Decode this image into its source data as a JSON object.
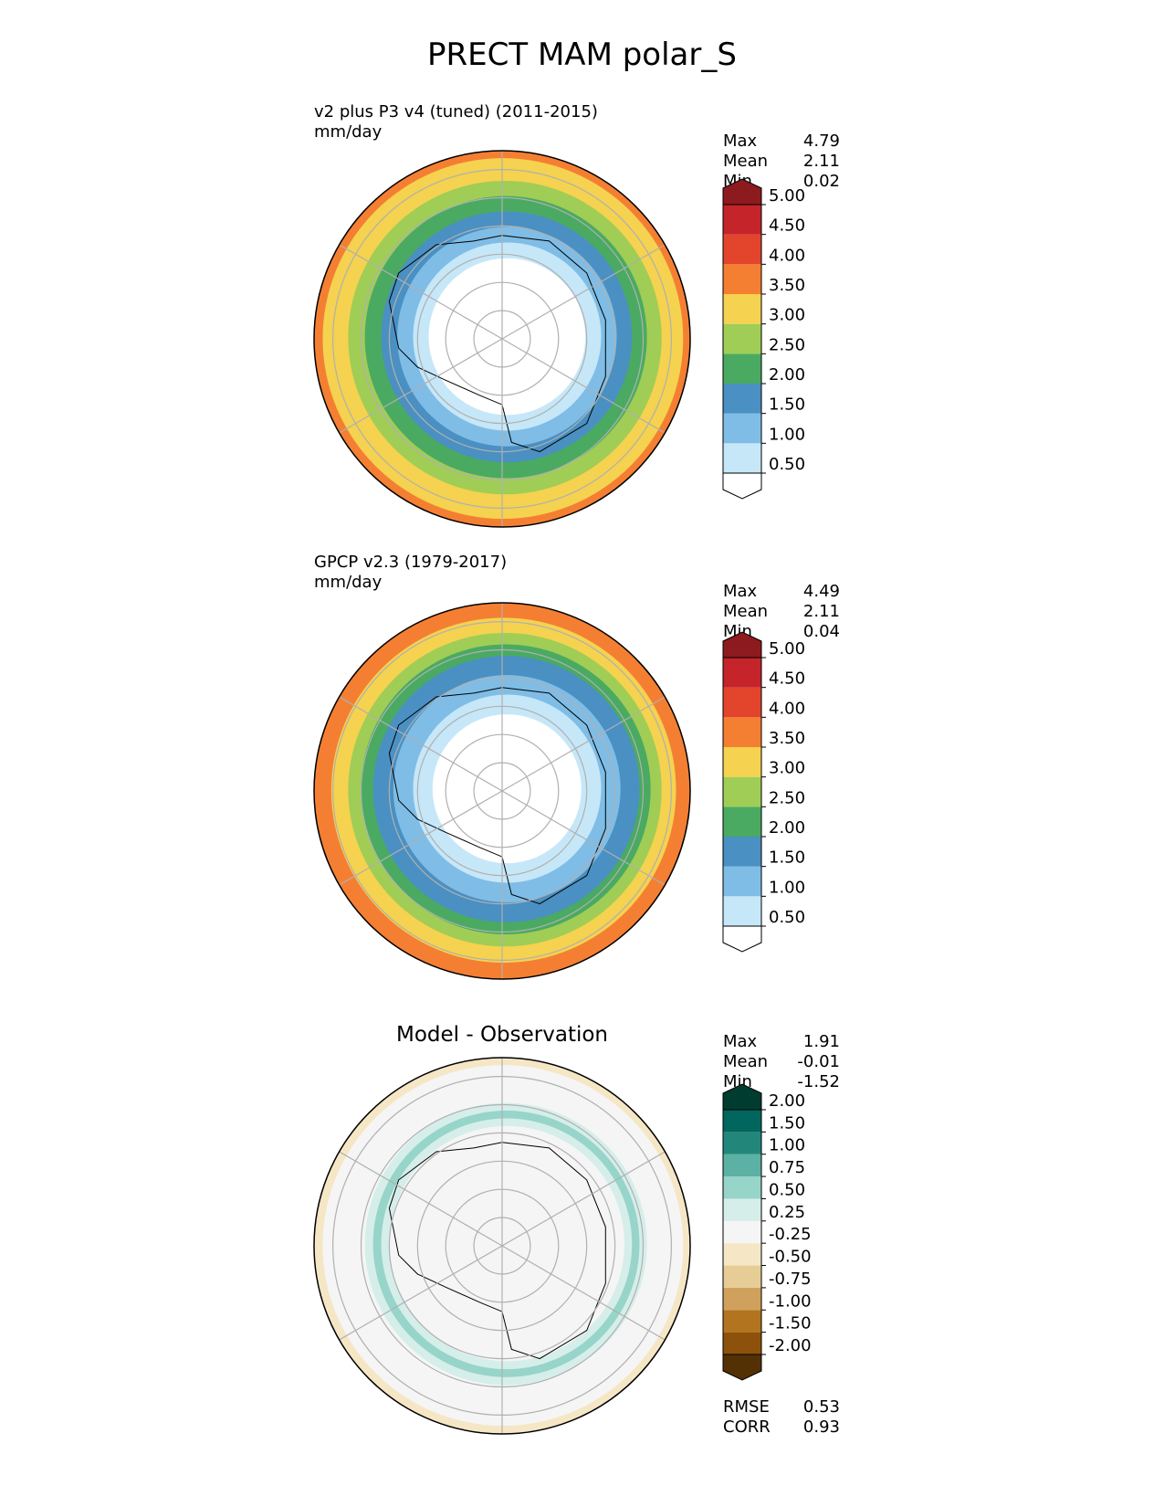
{
  "title": "PRECT MAM polar_S",
  "panels": [
    {
      "title_line1": "v2 plus P3 v4 (tuned) (2011-2015)",
      "title_line2": "mm/day",
      "stats": [
        {
          "label": "Max",
          "value": "4.79"
        },
        {
          "label": "Mean",
          "value": "2.11"
        },
        {
          "label": "Min",
          "value": "0.02"
        }
      ]
    },
    {
      "title_line1": "GPCP v2.3 (1979-2017)",
      "title_line2": "mm/day",
      "stats": [
        {
          "label": "Max",
          "value": "4.49"
        },
        {
          "label": "Mean",
          "value": "2.11"
        },
        {
          "label": "Min",
          "value": "0.04"
        }
      ]
    },
    {
      "title_line1": "Model - Observation",
      "stats": [
        {
          "label": "Max",
          "value": "1.91"
        },
        {
          "label": "Mean",
          "value": "-0.01"
        },
        {
          "label": "Min",
          "value": "-1.52"
        }
      ],
      "extra_stats": [
        {
          "label": "RMSE",
          "value": "0.53"
        },
        {
          "label": "CORR",
          "value": "0.93"
        }
      ]
    }
  ],
  "chart_data": [
    {
      "type": "heatmap",
      "projection": "south-polar-stereographic",
      "variable": "PRECT",
      "units": "mm/day",
      "levels": [
        "0.50",
        "1.00",
        "1.50",
        "2.00",
        "2.50",
        "3.00",
        "3.50",
        "4.00",
        "4.50",
        "5.00"
      ],
      "colors": [
        "#ffffff",
        "#c6e7f8",
        "#7fbde6",
        "#4a90c2",
        "#4aaa62",
        "#a0cd55",
        "#f5d24f",
        "#f47f32",
        "#e2452c",
        "#c4242a",
        "#8d1a1e"
      ],
      "ring_profile": [
        {
          "r": 0.0,
          "value": 0.3
        },
        {
          "r": 0.4,
          "value": 0.4
        },
        {
          "r": 0.5,
          "value": 0.9
        },
        {
          "r": 0.58,
          "value": 1.4
        },
        {
          "r": 0.66,
          "value": 1.9
        },
        {
          "r": 0.74,
          "value": 2.4
        },
        {
          "r": 0.82,
          "value": 2.9
        },
        {
          "r": 0.9,
          "value": 3.3
        },
        {
          "r": 1.0,
          "value": 3.6
        }
      ]
    },
    {
      "type": "heatmap",
      "projection": "south-polar-stereographic",
      "variable": "PRECT",
      "units": "mm/day",
      "levels": [
        "0.50",
        "1.00",
        "1.50",
        "2.00",
        "2.50",
        "3.00",
        "3.50",
        "4.00",
        "4.50",
        "5.00"
      ],
      "colors": [
        "#ffffff",
        "#c6e7f8",
        "#7fbde6",
        "#4a90c2",
        "#4aaa62",
        "#a0cd55",
        "#f5d24f",
        "#f47f32",
        "#e2452c",
        "#c4242a",
        "#8d1a1e"
      ],
      "ring_profile": [
        {
          "r": 0.0,
          "value": 0.3
        },
        {
          "r": 0.38,
          "value": 0.4
        },
        {
          "r": 0.48,
          "value": 0.8
        },
        {
          "r": 0.58,
          "value": 1.3
        },
        {
          "r": 0.68,
          "value": 1.8
        },
        {
          "r": 0.76,
          "value": 2.3
        },
        {
          "r": 0.82,
          "value": 2.8
        },
        {
          "r": 0.88,
          "value": 3.3
        },
        {
          "r": 1.0,
          "value": 3.8
        }
      ]
    },
    {
      "type": "heatmap",
      "projection": "south-polar-stereographic",
      "variable": "PRECT difference",
      "units": "mm/day",
      "levels": [
        "-2.00",
        "-1.50",
        "-1.00",
        "-0.75",
        "-0.50",
        "-0.25",
        "0.25",
        "0.50",
        "0.75",
        "1.00",
        "1.50",
        "2.00"
      ],
      "colors": [
        "#543005",
        "#8c510a",
        "#b2741e",
        "#cfa15c",
        "#e6cd95",
        "#f5e7c6",
        "#f5f5f5",
        "#d5eee9",
        "#97d4c9",
        "#5bb1a3",
        "#23867a",
        "#01665e",
        "#003c30"
      ],
      "ring_profile": [
        {
          "r": 0.0,
          "value": 0.0
        },
        {
          "r": 0.6,
          "value": 0.0
        },
        {
          "r": 0.7,
          "value": 0.6
        },
        {
          "r": 0.78,
          "value": 0.2
        },
        {
          "r": 0.9,
          "value": -0.1
        },
        {
          "r": 1.0,
          "value": -0.3
        }
      ]
    }
  ]
}
